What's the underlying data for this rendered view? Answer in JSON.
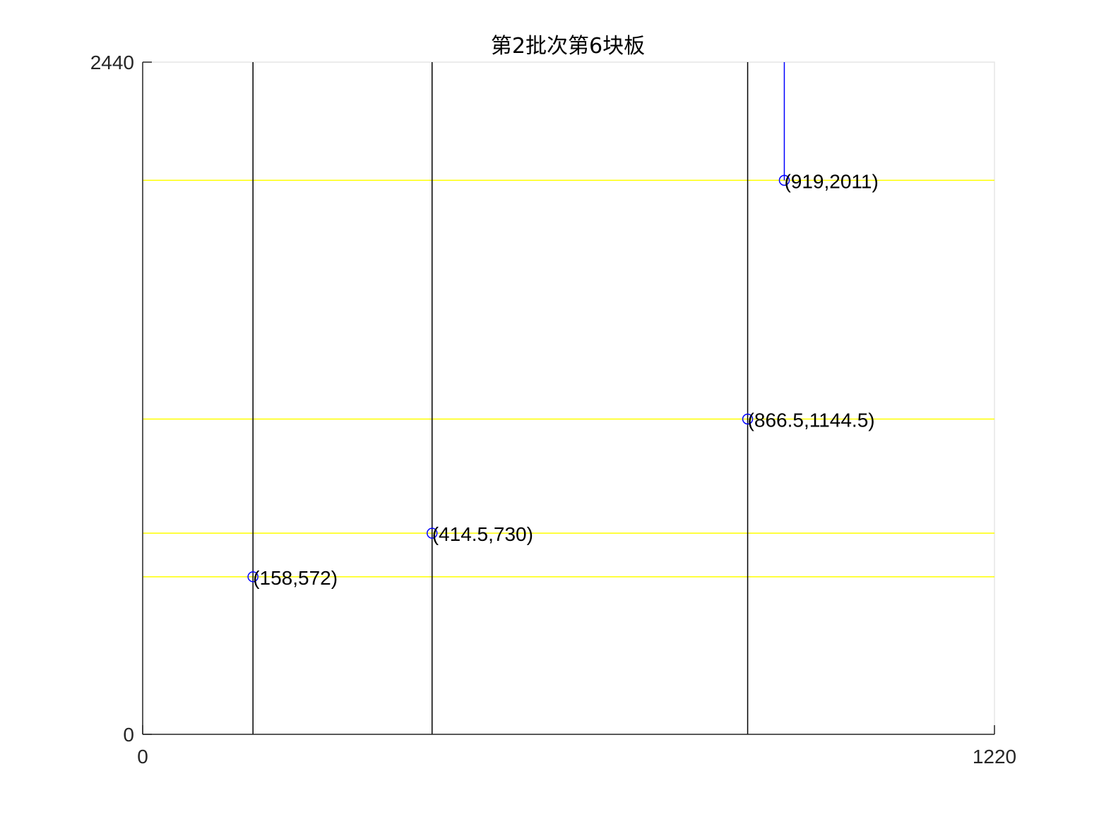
{
  "chart_data": {
    "type": "line",
    "title": "第2批次第6块板",
    "xlabel": "",
    "ylabel": "",
    "xlim": [
      0,
      1220
    ],
    "ylim": [
      0,
      2440
    ],
    "x_ticks": [
      "0",
      "1220"
    ],
    "y_ticks": [
      "0",
      "2440"
    ],
    "grid": false,
    "legend": "none",
    "vertical_lines": [
      {
        "x": 158,
        "y_range": [
          0,
          2440
        ],
        "color": "#000000"
      },
      {
        "x": 414.5,
        "y_range": [
          0,
          2440
        ],
        "color": "#000000"
      },
      {
        "x": 866.5,
        "y_range": [
          0,
          2440
        ],
        "color": "#000000"
      },
      {
        "x": 919,
        "y_range": [
          2011,
          2440
        ],
        "color": "#0000ff"
      }
    ],
    "horizontal_lines": [
      {
        "y": 572,
        "x_range": [
          0,
          1220
        ],
        "color": "#ffff00"
      },
      {
        "y": 730,
        "x_range": [
          0,
          1220
        ],
        "color": "#ffff00"
      },
      {
        "y": 1144.5,
        "x_range": [
          0,
          1220
        ],
        "color": "#ffff00"
      },
      {
        "y": 2011,
        "x_range": [
          0,
          1220
        ],
        "color": "#ffff00"
      }
    ],
    "points": [
      {
        "x": 158,
        "y": 572,
        "label": "(158,572)"
      },
      {
        "x": 414.5,
        "y": 730,
        "label": "(414.5,730)"
      },
      {
        "x": 866.5,
        "y": 1144.5,
        "label": "(866.5,1144.5)"
      },
      {
        "x": 919,
        "y": 2011,
        "label": "(919,2011)"
      }
    ],
    "marker_color": "#0000ff",
    "axis_color": "#262626",
    "box_color": "#e6e6e6"
  }
}
